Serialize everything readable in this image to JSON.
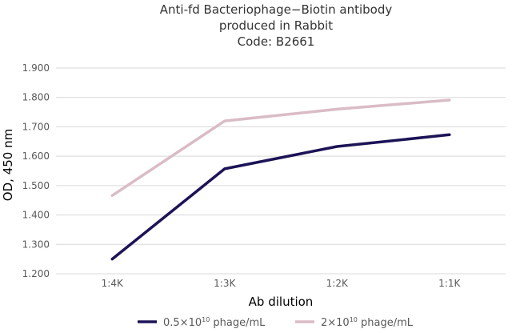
{
  "chart_data": {
    "type": "line",
    "title": [
      "Anti-fd Bacteriophage−Biotin antibody",
      "produced in Rabbit",
      "Code: B2661"
    ],
    "xlabel": "Ab dilution",
    "ylabel": "OD, 450 nm",
    "categories": [
      "1:4K",
      "1:3K",
      "1:2K",
      "1:1K"
    ],
    "ylim": [
      1.2,
      1.9
    ],
    "yticks": [
      "1.200",
      "1.300",
      "1.400",
      "1.500",
      "1.600",
      "1.700",
      "1.800",
      "1.900"
    ],
    "grid": true,
    "legend_position": "bottom",
    "series": [
      {
        "name_parts": [
          "0.5×10",
          "10",
          " phage/mL"
        ],
        "color": "#1c1357",
        "values": [
          1.25,
          1.557,
          1.633,
          1.673
        ]
      },
      {
        "name_parts": [
          "2×10",
          "10",
          " phage/mL"
        ],
        "color": "#d9bcc6",
        "values": [
          1.466,
          1.72,
          1.76,
          1.791
        ]
      }
    ]
  }
}
